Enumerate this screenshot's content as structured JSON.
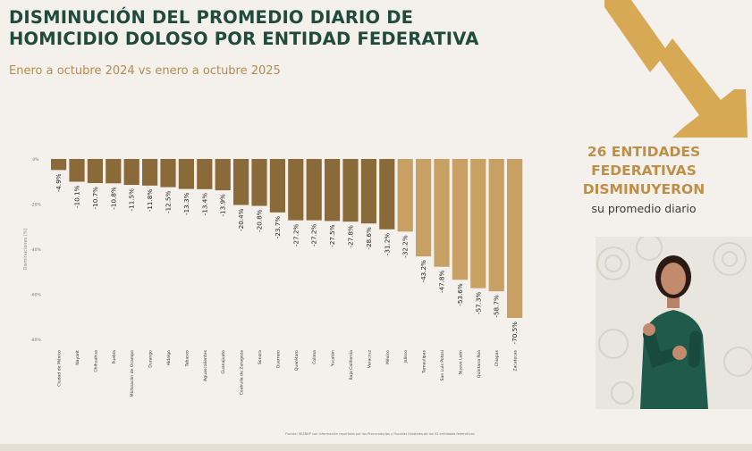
{
  "title_lines": [
    "DISMINUCIÓN DEL PROMEDIO DIARIO DE",
    "HOMICIDIO DOLOSO POR ENTIDAD FEDERATIVA"
  ],
  "subtitle": "Enero a octubre 2024 vs enero a octubre 2025",
  "highlight": {
    "lines": [
      "26 ENTIDADES",
      "FEDERATIVAS",
      "DISMINUYERON"
    ],
    "sub": "su promedio diario"
  },
  "source_note": "Fuente: SESNSP con información reportada por las Procuradurías y Fiscalías Estatales de las 32 entidades federativas",
  "colors": {
    "title": "#1f4a3c",
    "accent": "#bf8f47",
    "bar_dark": "#8b6a3a",
    "bar_light": "#c9a063"
  },
  "chart_data": {
    "type": "bar",
    "orientation": "vertical",
    "ylabel": "Disminuciones (%)",
    "ylim": [
      -80,
      0
    ],
    "yticks": [
      "0%",
      "-20%",
      "-40%",
      "-60%",
      "-80%"
    ],
    "categories": [
      "Ciudad de México",
      "Nayarit",
      "Chihuahua",
      "Puebla",
      "Michoacán de Ocampo",
      "Durango",
      "Hidalgo",
      "Tabasco",
      "Aguascalientes",
      "Guanajuato",
      "Coahuila de Zaragoza",
      "Sonora",
      "Guerrero",
      "Querétaro",
      "Colima",
      "Yucatán",
      "Baja California",
      "Veracruz",
      "México",
      "Jalisco",
      "Tamaulipas",
      "San Luis Potosí",
      "Nuevo León",
      "Quintana Roo",
      "Chiapas",
      "Zacatecas"
    ],
    "values": [
      -4.9,
      -10.1,
      -10.7,
      -10.8,
      -11.5,
      -11.8,
      -12.5,
      -13.3,
      -13.4,
      -13.9,
      -20.4,
      -20.8,
      -23.7,
      -27.2,
      -27.2,
      -27.5,
      -27.8,
      -28.6,
      -31.2,
      -32.2,
      -43.2,
      -47.8,
      -53.6,
      -57.3,
      -58.7,
      -70.5
    ],
    "data_labels": [
      "-4.9%",
      "-10.1%",
      "-10.7%",
      "-10.8%",
      "-11.5%",
      "-11.8%",
      "-12.5%",
      "-13.3%",
      "-13.4%",
      "-13.9%",
      "-20.4%",
      "-20.8%",
      "-23.7%",
      "-27.2%",
      "-27.2%",
      "-27.5%",
      "-27.8%",
      "-28.6%",
      "-31.2%",
      "-32.2%",
      "-43.2%",
      "-47.8%",
      "-53.6%",
      "-57.3%",
      "-58.7%",
      "-70.5%"
    ],
    "grid": false,
    "legend": "none"
  }
}
